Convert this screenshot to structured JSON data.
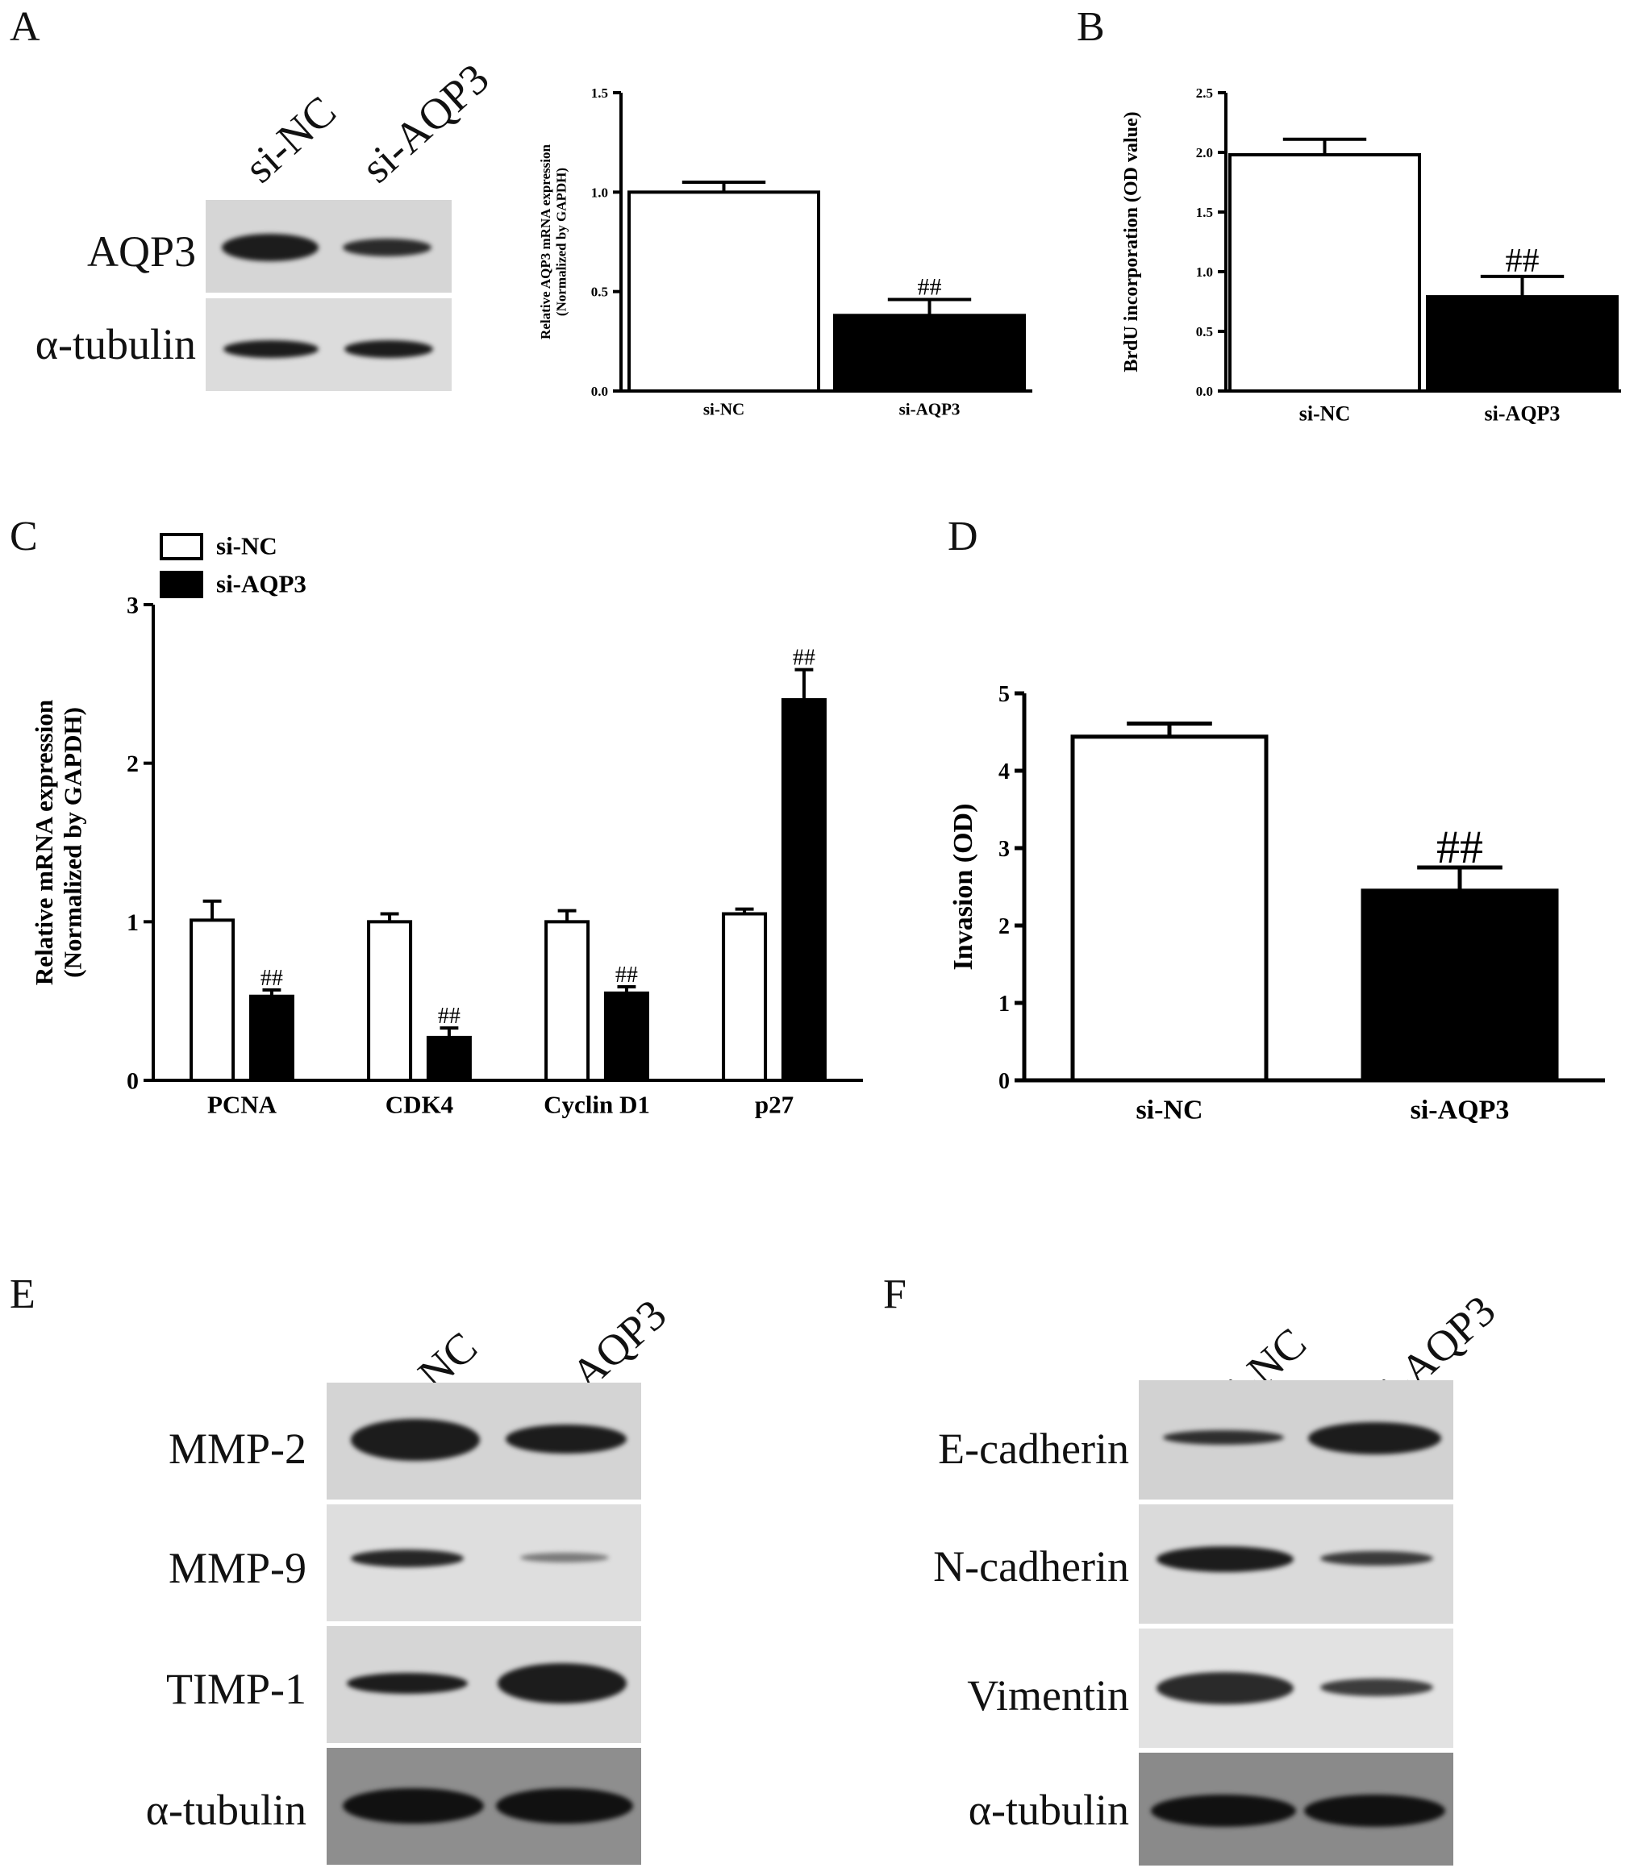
{
  "panels": {
    "A": "A",
    "B": "B",
    "C": "C",
    "D": "D",
    "E": "E",
    "F": "F"
  },
  "lanes": {
    "nc": "si-NC",
    "aqp3": "si-AQP3"
  },
  "blotA": {
    "rows": [
      "AQP3",
      "α-tubulin"
    ]
  },
  "blotE": {
    "rows": [
      "MMP-2",
      "MMP-9",
      "TIMP-1",
      "α-tubulin"
    ]
  },
  "blotF": {
    "rows": [
      "E-cadherin",
      "N-cadherin",
      "Vimentin",
      "α-tubulin"
    ]
  },
  "chart_data": [
    {
      "id": "A",
      "type": "bar",
      "categories": [
        "si-NC",
        "si-AQP3"
      ],
      "values": [
        1.0,
        0.38
      ],
      "errors": [
        0.05,
        0.08
      ],
      "fills": [
        "#ffffff",
        "#000000"
      ],
      "annotations": [
        "",
        "##"
      ],
      "ylabel": "Relative AQP3 mRNA expression",
      "ylabel2": "(Normalized by GAPDH)",
      "ylim": [
        0,
        1.5
      ],
      "yticks": [
        0.0,
        0.5,
        1.0,
        1.5
      ],
      "ytick_labels": [
        "0.0",
        "0.5",
        "1.0",
        "1.5"
      ]
    },
    {
      "id": "B",
      "type": "bar",
      "categories": [
        "si-NC",
        "si-AQP3"
      ],
      "values": [
        1.98,
        0.79
      ],
      "errors": [
        0.13,
        0.17
      ],
      "fills": [
        "#ffffff",
        "#000000"
      ],
      "annotations": [
        "",
        "##"
      ],
      "ylabel": "BrdU incorporation (OD value)",
      "ylim": [
        0,
        2.5
      ],
      "yticks": [
        0.0,
        0.5,
        1.0,
        1.5,
        2.0,
        2.5
      ],
      "ytick_labels": [
        "0.0",
        "0.5",
        "1.0",
        "1.5",
        "2.0",
        "2.5"
      ]
    },
    {
      "id": "C",
      "type": "bar",
      "categories": [
        "PCNA",
        "CDK4",
        "Cyclin D1",
        "p27"
      ],
      "series": [
        {
          "name": "si-NC",
          "values": [
            1.01,
            1.0,
            1.0,
            1.05
          ],
          "errors": [
            0.12,
            0.05,
            0.07,
            0.03
          ],
          "fill": "#ffffff"
        },
        {
          "name": "si-AQP3",
          "values": [
            0.53,
            0.27,
            0.55,
            2.4
          ],
          "errors": [
            0.04,
            0.06,
            0.04,
            0.19
          ],
          "fill": "#000000"
        }
      ],
      "annotations": [
        "##",
        "##",
        "##",
        "##"
      ],
      "ylabel": "Relative mRNA expression",
      "ylabel2": "(Normalized by GAPDH)",
      "ylim": [
        0,
        3
      ],
      "yticks": [
        0,
        1,
        2,
        3
      ],
      "ytick_labels": [
        "0",
        "1",
        "2",
        "3"
      ],
      "legend": "top-left"
    },
    {
      "id": "D",
      "type": "bar",
      "categories": [
        "si-NC",
        "si-AQP3"
      ],
      "values": [
        4.44,
        2.45
      ],
      "errors": [
        0.17,
        0.3
      ],
      "fills": [
        "#ffffff",
        "#000000"
      ],
      "annotations": [
        "",
        "##"
      ],
      "ylabel": "Invasion (OD)",
      "ylim": [
        0,
        5
      ],
      "yticks": [
        0,
        1,
        2,
        3,
        4,
        5
      ],
      "ytick_labels": [
        "0",
        "1",
        "2",
        "3",
        "4",
        "5"
      ]
    }
  ]
}
